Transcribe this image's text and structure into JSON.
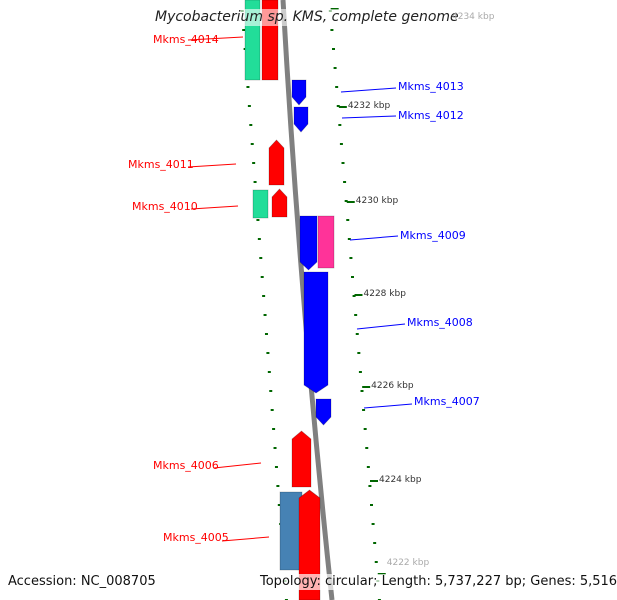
{
  "title": "Mycobacterium sp. KMS, complete genome",
  "accession": "Accession: NC_008705",
  "topology": "Topology: circular; Length: 5,737,227 bp; Genes: 5,516",
  "colors": {
    "forward": "#ff0000",
    "reverse": "#0000ff",
    "rna": "#22dd99",
    "other": "#4682b4",
    "pink": "#ff3399",
    "tick": "#006600",
    "backbone": "#808080"
  },
  "ticks": [
    "4234 kbp",
    "4232 kbp",
    "4230 kbp",
    "4228 kbp",
    "4226 kbp",
    "4224 kbp",
    "4222 kbp"
  ],
  "genes": [
    {
      "name": "Mkms_4014",
      "strand": "forward"
    },
    {
      "name": "Mkms_4013",
      "strand": "reverse"
    },
    {
      "name": "Mkms_4012",
      "strand": "reverse"
    },
    {
      "name": "Mkms_4011",
      "strand": "forward"
    },
    {
      "name": "Mkms_4010",
      "strand": "forward"
    },
    {
      "name": "Mkms_4009",
      "strand": "reverse"
    },
    {
      "name": "Mkms_4008",
      "strand": "reverse"
    },
    {
      "name": "Mkms_4007",
      "strand": "reverse"
    },
    {
      "name": "Mkms_4006",
      "strand": "forward"
    },
    {
      "name": "Mkms_4005",
      "strand": "forward"
    }
  ]
}
